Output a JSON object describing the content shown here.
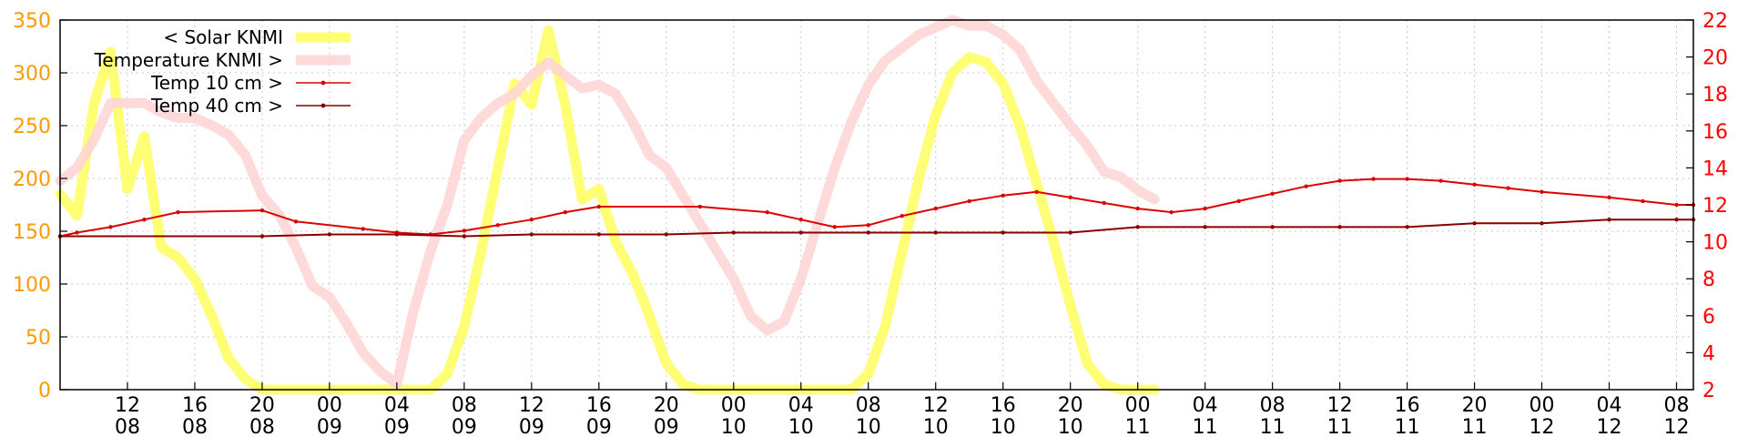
{
  "chart_data": {
    "type": "line",
    "x_range": [
      "2024-01-08T08:00",
      "2024-01-12T09:00"
    ],
    "x_ticks": [
      {
        "t": "2024-01-08T12:00",
        "hour": "12",
        "day": "08"
      },
      {
        "t": "2024-01-08T16:00",
        "hour": "16",
        "day": "08"
      },
      {
        "t": "2024-01-08T20:00",
        "hour": "20",
        "day": "08"
      },
      {
        "t": "2024-01-09T00:00",
        "hour": "00",
        "day": "09"
      },
      {
        "t": "2024-01-09T04:00",
        "hour": "04",
        "day": "09"
      },
      {
        "t": "2024-01-09T08:00",
        "hour": "08",
        "day": "09"
      },
      {
        "t": "2024-01-09T12:00",
        "hour": "12",
        "day": "09"
      },
      {
        "t": "2024-01-09T16:00",
        "hour": "16",
        "day": "09"
      },
      {
        "t": "2024-01-09T20:00",
        "hour": "20",
        "day": "09"
      },
      {
        "t": "2024-01-10T00:00",
        "hour": "00",
        "day": "10"
      },
      {
        "t": "2024-01-10T04:00",
        "hour": "04",
        "day": "10"
      },
      {
        "t": "2024-01-10T08:00",
        "hour": "08",
        "day": "10"
      },
      {
        "t": "2024-01-10T12:00",
        "hour": "12",
        "day": "10"
      },
      {
        "t": "2024-01-10T16:00",
        "hour": "16",
        "day": "10"
      },
      {
        "t": "2024-01-10T20:00",
        "hour": "20",
        "day": "10"
      },
      {
        "t": "2024-01-11T00:00",
        "hour": "00",
        "day": "11"
      },
      {
        "t": "2024-01-11T04:00",
        "hour": "04",
        "day": "11"
      },
      {
        "t": "2024-01-11T08:00",
        "hour": "08",
        "day": "11"
      },
      {
        "t": "2024-01-11T12:00",
        "hour": "12",
        "day": "11"
      },
      {
        "t": "2024-01-11T16:00",
        "hour": "16",
        "day": "11"
      },
      {
        "t": "2024-01-11T20:00",
        "hour": "20",
        "day": "11"
      },
      {
        "t": "2024-01-12T00:00",
        "hour": "00",
        "day": "12"
      },
      {
        "t": "2024-01-12T04:00",
        "hour": "04",
        "day": "12"
      },
      {
        "t": "2024-01-12T08:00",
        "hour": "08",
        "day": "12"
      }
    ],
    "y_left": {
      "range": [
        0,
        350
      ],
      "ticks": [
        0,
        50,
        100,
        150,
        200,
        250,
        300,
        350
      ],
      "color": "#ff9900"
    },
    "y_right": {
      "range": [
        2,
        22
      ],
      "ticks": [
        2,
        4,
        6,
        8,
        10,
        12,
        14,
        16,
        18,
        20,
        22
      ],
      "color": "#ff0000"
    },
    "grid": true,
    "legend_position": "top-left",
    "series": [
      {
        "name": "< Solar KNMI",
        "axis": "left",
        "color": "#ffff66",
        "style": "thick",
        "points": [
          [
            "2024-01-08T08:00",
            185
          ],
          [
            "2024-01-08T09:00",
            165
          ],
          [
            "2024-01-08T10:00",
            270
          ],
          [
            "2024-01-08T11:00",
            320
          ],
          [
            "2024-01-08T12:00",
            190
          ],
          [
            "2024-01-08T13:00",
            240
          ],
          [
            "2024-01-08T14:00",
            135
          ],
          [
            "2024-01-08T15:00",
            125
          ],
          [
            "2024-01-08T16:00",
            105
          ],
          [
            "2024-01-08T17:00",
            70
          ],
          [
            "2024-01-08T18:00",
            30
          ],
          [
            "2024-01-08T19:00",
            10
          ],
          [
            "2024-01-08T20:00",
            0
          ],
          [
            "2024-01-09T06:00",
            0
          ],
          [
            "2024-01-09T07:00",
            15
          ],
          [
            "2024-01-09T08:00",
            60
          ],
          [
            "2024-01-09T09:00",
            130
          ],
          [
            "2024-01-09T10:00",
            210
          ],
          [
            "2024-01-09T11:00",
            290
          ],
          [
            "2024-01-09T12:00",
            270
          ],
          [
            "2024-01-09T13:00",
            340
          ],
          [
            "2024-01-09T14:00",
            270
          ],
          [
            "2024-01-09T15:00",
            180
          ],
          [
            "2024-01-09T16:00",
            190
          ],
          [
            "2024-01-09T17:00",
            140
          ],
          [
            "2024-01-09T18:00",
            110
          ],
          [
            "2024-01-09T19:00",
            70
          ],
          [
            "2024-01-09T20:00",
            25
          ],
          [
            "2024-01-09T21:00",
            5
          ],
          [
            "2024-01-09T22:00",
            0
          ],
          [
            "2024-01-10T07:00",
            0
          ],
          [
            "2024-01-10T08:00",
            15
          ],
          [
            "2024-01-10T09:00",
            60
          ],
          [
            "2024-01-10T10:00",
            130
          ],
          [
            "2024-01-10T11:00",
            200
          ],
          [
            "2024-01-10T12:00",
            260
          ],
          [
            "2024-01-10T13:00",
            300
          ],
          [
            "2024-01-10T14:00",
            315
          ],
          [
            "2024-01-10T15:00",
            310
          ],
          [
            "2024-01-10T16:00",
            290
          ],
          [
            "2024-01-10T17:00",
            250
          ],
          [
            "2024-01-10T18:00",
            195
          ],
          [
            "2024-01-10T19:00",
            140
          ],
          [
            "2024-01-10T20:00",
            80
          ],
          [
            "2024-01-10T21:00",
            25
          ],
          [
            "2024-01-10T22:00",
            5
          ],
          [
            "2024-01-10T23:00",
            0
          ],
          [
            "2024-01-11T01:00",
            0
          ]
        ]
      },
      {
        "name": "Temperature KNMI >",
        "axis": "right",
        "color": "#ffd6d6",
        "style": "thick",
        "points": [
          [
            "2024-01-08T08:00",
            13.3
          ],
          [
            "2024-01-08T09:00",
            14.0
          ],
          [
            "2024-01-08T10:00",
            15.5
          ],
          [
            "2024-01-08T11:00",
            17.5
          ],
          [
            "2024-01-08T12:00",
            17.5
          ],
          [
            "2024-01-08T13:00",
            17.5
          ],
          [
            "2024-01-08T14:00",
            17.0
          ],
          [
            "2024-01-08T15:00",
            16.7
          ],
          [
            "2024-01-08T16:00",
            16.7
          ],
          [
            "2024-01-08T17:00",
            16.3
          ],
          [
            "2024-01-08T18:00",
            15.8
          ],
          [
            "2024-01-08T19:00",
            14.7
          ],
          [
            "2024-01-08T20:00",
            12.5
          ],
          [
            "2024-01-08T21:00",
            11.5
          ],
          [
            "2024-01-08T22:00",
            9.7
          ],
          [
            "2024-01-08T23:00",
            7.6
          ],
          [
            "2024-01-09T00:00",
            7.0
          ],
          [
            "2024-01-09T01:00",
            5.6
          ],
          [
            "2024-01-09T02:00",
            4.0
          ],
          [
            "2024-01-09T03:00",
            3.0
          ],
          [
            "2024-01-09T04:00",
            2.3
          ],
          [
            "2024-01-09T05:00",
            6.3
          ],
          [
            "2024-01-09T06:00",
            9.5
          ],
          [
            "2024-01-09T07:00",
            12.0
          ],
          [
            "2024-01-09T08:00",
            15.5
          ],
          [
            "2024-01-09T09:00",
            16.7
          ],
          [
            "2024-01-09T10:00",
            17.5
          ],
          [
            "2024-01-09T11:00",
            18.0
          ],
          [
            "2024-01-09T12:00",
            19.0
          ],
          [
            "2024-01-09T13:00",
            19.7
          ],
          [
            "2024-01-09T14:00",
            19.0
          ],
          [
            "2024-01-09T15:00",
            18.3
          ],
          [
            "2024-01-09T16:00",
            18.5
          ],
          [
            "2024-01-09T17:00",
            18.0
          ],
          [
            "2024-01-09T18:00",
            16.5
          ],
          [
            "2024-01-09T19:00",
            14.7
          ],
          [
            "2024-01-09T20:00",
            14.0
          ],
          [
            "2024-01-09T21:00",
            12.5
          ],
          [
            "2024-01-09T22:00",
            11.0
          ],
          [
            "2024-01-09T23:00",
            9.5
          ],
          [
            "2024-01-10T00:00",
            8.0
          ],
          [
            "2024-01-10T01:00",
            6.0
          ],
          [
            "2024-01-10T02:00",
            5.2
          ],
          [
            "2024-01-10T03:00",
            5.7
          ],
          [
            "2024-01-10T04:00",
            8.0
          ],
          [
            "2024-01-10T05:00",
            11.0
          ],
          [
            "2024-01-10T06:00",
            14.0
          ],
          [
            "2024-01-10T07:00",
            16.5
          ],
          [
            "2024-01-10T08:00",
            18.5
          ],
          [
            "2024-01-10T09:00",
            19.8
          ],
          [
            "2024-01-10T10:00",
            20.5
          ],
          [
            "2024-01-10T11:00",
            21.2
          ],
          [
            "2024-01-10T12:00",
            21.6
          ],
          [
            "2024-01-10T13:00",
            22.0
          ],
          [
            "2024-01-10T14:00",
            21.7
          ],
          [
            "2024-01-10T15:00",
            21.7
          ],
          [
            "2024-01-10T16:00",
            21.2
          ],
          [
            "2024-01-10T17:00",
            20.4
          ],
          [
            "2024-01-10T18:00",
            18.7
          ],
          [
            "2024-01-10T19:00",
            17.5
          ],
          [
            "2024-01-10T20:00",
            16.3
          ],
          [
            "2024-01-10T21:00",
            15.2
          ],
          [
            "2024-01-10T22:00",
            13.8
          ],
          [
            "2024-01-10T23:00",
            13.5
          ],
          [
            "2024-01-11T00:00",
            12.8
          ],
          [
            "2024-01-11T01:00",
            12.3
          ]
        ]
      },
      {
        "name": "Temp 10 cm >",
        "axis": "right",
        "color": "#dd0000",
        "style": "thin-markers",
        "points": [
          [
            "2024-01-08T08:00",
            10.3
          ],
          [
            "2024-01-08T09:00",
            10.5
          ],
          [
            "2024-01-08T11:00",
            10.8
          ],
          [
            "2024-01-08T13:00",
            11.2
          ],
          [
            "2024-01-08T15:00",
            11.6
          ],
          [
            "2024-01-08T20:00",
            11.7
          ],
          [
            "2024-01-08T22:00",
            11.1
          ],
          [
            "2024-01-09T02:00",
            10.7
          ],
          [
            "2024-01-09T04:00",
            10.5
          ],
          [
            "2024-01-09T06:00",
            10.4
          ],
          [
            "2024-01-09T08:00",
            10.6
          ],
          [
            "2024-01-09T10:00",
            10.9
          ],
          [
            "2024-01-09T12:00",
            11.2
          ],
          [
            "2024-01-09T14:00",
            11.6
          ],
          [
            "2024-01-09T16:00",
            11.9
          ],
          [
            "2024-01-09T22:00",
            11.9
          ],
          [
            "2024-01-10T02:00",
            11.6
          ],
          [
            "2024-01-10T04:00",
            11.2
          ],
          [
            "2024-01-10T06:00",
            10.8
          ],
          [
            "2024-01-10T08:00",
            10.9
          ],
          [
            "2024-01-10T10:00",
            11.4
          ],
          [
            "2024-01-10T12:00",
            11.8
          ],
          [
            "2024-01-10T14:00",
            12.2
          ],
          [
            "2024-01-10T16:00",
            12.5
          ],
          [
            "2024-01-10T18:00",
            12.7
          ],
          [
            "2024-01-10T20:00",
            12.4
          ],
          [
            "2024-01-10T22:00",
            12.1
          ],
          [
            "2024-01-11T00:00",
            11.8
          ],
          [
            "2024-01-11T02:00",
            11.6
          ],
          [
            "2024-01-11T04:00",
            11.8
          ],
          [
            "2024-01-11T06:00",
            12.2
          ],
          [
            "2024-01-11T08:00",
            12.6
          ],
          [
            "2024-01-11T10:00",
            13.0
          ],
          [
            "2024-01-11T12:00",
            13.3
          ],
          [
            "2024-01-11T14:00",
            13.4
          ],
          [
            "2024-01-11T16:00",
            13.4
          ],
          [
            "2024-01-11T18:00",
            13.3
          ],
          [
            "2024-01-11T20:00",
            13.1
          ],
          [
            "2024-01-11T22:00",
            12.9
          ],
          [
            "2024-01-12T00:00",
            12.7
          ],
          [
            "2024-01-12T04:00",
            12.4
          ],
          [
            "2024-01-12T06:00",
            12.2
          ],
          [
            "2024-01-12T08:00",
            12.0
          ],
          [
            "2024-01-12T09:00",
            12.0
          ]
        ]
      },
      {
        "name": "Temp 40 cm >",
        "axis": "right",
        "color": "#880000",
        "style": "thin-markers",
        "points": [
          [
            "2024-01-08T08:00",
            10.3
          ],
          [
            "2024-01-08T20:00",
            10.3
          ],
          [
            "2024-01-09T00:00",
            10.4
          ],
          [
            "2024-01-09T04:00",
            10.4
          ],
          [
            "2024-01-09T08:00",
            10.3
          ],
          [
            "2024-01-09T12:00",
            10.4
          ],
          [
            "2024-01-09T16:00",
            10.4
          ],
          [
            "2024-01-09T20:00",
            10.4
          ],
          [
            "2024-01-10T00:00",
            10.5
          ],
          [
            "2024-01-10T04:00",
            10.5
          ],
          [
            "2024-01-10T08:00",
            10.5
          ],
          [
            "2024-01-10T12:00",
            10.5
          ],
          [
            "2024-01-10T16:00",
            10.5
          ],
          [
            "2024-01-10T20:00",
            10.5
          ],
          [
            "2024-01-11T00:00",
            10.8
          ],
          [
            "2024-01-11T04:00",
            10.8
          ],
          [
            "2024-01-11T08:00",
            10.8
          ],
          [
            "2024-01-11T12:00",
            10.8
          ],
          [
            "2024-01-11T16:00",
            10.8
          ],
          [
            "2024-01-11T20:00",
            11.0
          ],
          [
            "2024-01-12T00:00",
            11.0
          ],
          [
            "2024-01-12T04:00",
            11.2
          ],
          [
            "2024-01-12T08:00",
            11.2
          ],
          [
            "2024-01-12T09:00",
            11.2
          ]
        ]
      }
    ]
  }
}
